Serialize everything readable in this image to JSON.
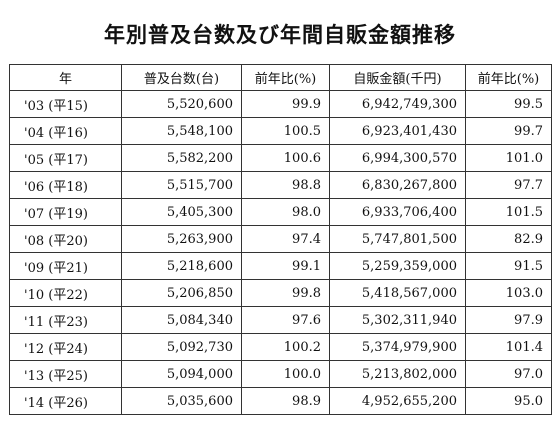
{
  "title": "年別普及台数及び年間自販金額推移",
  "columns": [
    "年",
    "普及台数(台)",
    "前年比(%)",
    "自販金額(千円)",
    "前年比(%)"
  ],
  "rows": [
    {
      "year": "'03 (平15)",
      "units": "5,520,600",
      "units_yoy": "99.9",
      "sales": "6,942,749,300",
      "sales_yoy": "99.5"
    },
    {
      "year": "'04 (平16)",
      "units": "5,548,100",
      "units_yoy": "100.5",
      "sales": "6,923,401,430",
      "sales_yoy": "99.7"
    },
    {
      "year": "'05 (平17)",
      "units": "5,582,200",
      "units_yoy": "100.6",
      "sales": "6,994,300,570",
      "sales_yoy": "101.0"
    },
    {
      "year": "'06 (平18)",
      "units": "5,515,700",
      "units_yoy": "98.8",
      "sales": "6,830,267,800",
      "sales_yoy": "97.7"
    },
    {
      "year": "'07 (平19)",
      "units": "5,405,300",
      "units_yoy": "98.0",
      "sales": "6,933,706,400",
      "sales_yoy": "101.5"
    },
    {
      "year": "'08 (平20)",
      "units": "5,263,900",
      "units_yoy": "97.4",
      "sales": "5,747,801,500",
      "sales_yoy": "82.9"
    },
    {
      "year": "'09 (平21)",
      "units": "5,218,600",
      "units_yoy": "99.1",
      "sales": "5,259,359,000",
      "sales_yoy": "91.5"
    },
    {
      "year": "'10 (平22)",
      "units": "5,206,850",
      "units_yoy": "99.8",
      "sales": "5,418,567,000",
      "sales_yoy": "103.0"
    },
    {
      "year": "'11 (平23)",
      "units": "5,084,340",
      "units_yoy": "97.6",
      "sales": "5,302,311,940",
      "sales_yoy": "97.9"
    },
    {
      "year": "'12 (平24)",
      "units": "5,092,730",
      "units_yoy": "100.2",
      "sales": "5,374,979,900",
      "sales_yoy": "101.4"
    },
    {
      "year": "'13 (平25)",
      "units": "5,094,000",
      "units_yoy": "100.0",
      "sales": "5,213,802,000",
      "sales_yoy": "97.0"
    },
    {
      "year": "'14 (平26)",
      "units": "5,035,600",
      "units_yoy": "98.9",
      "sales": "4,952,655,200",
      "sales_yoy": "95.0"
    }
  ]
}
